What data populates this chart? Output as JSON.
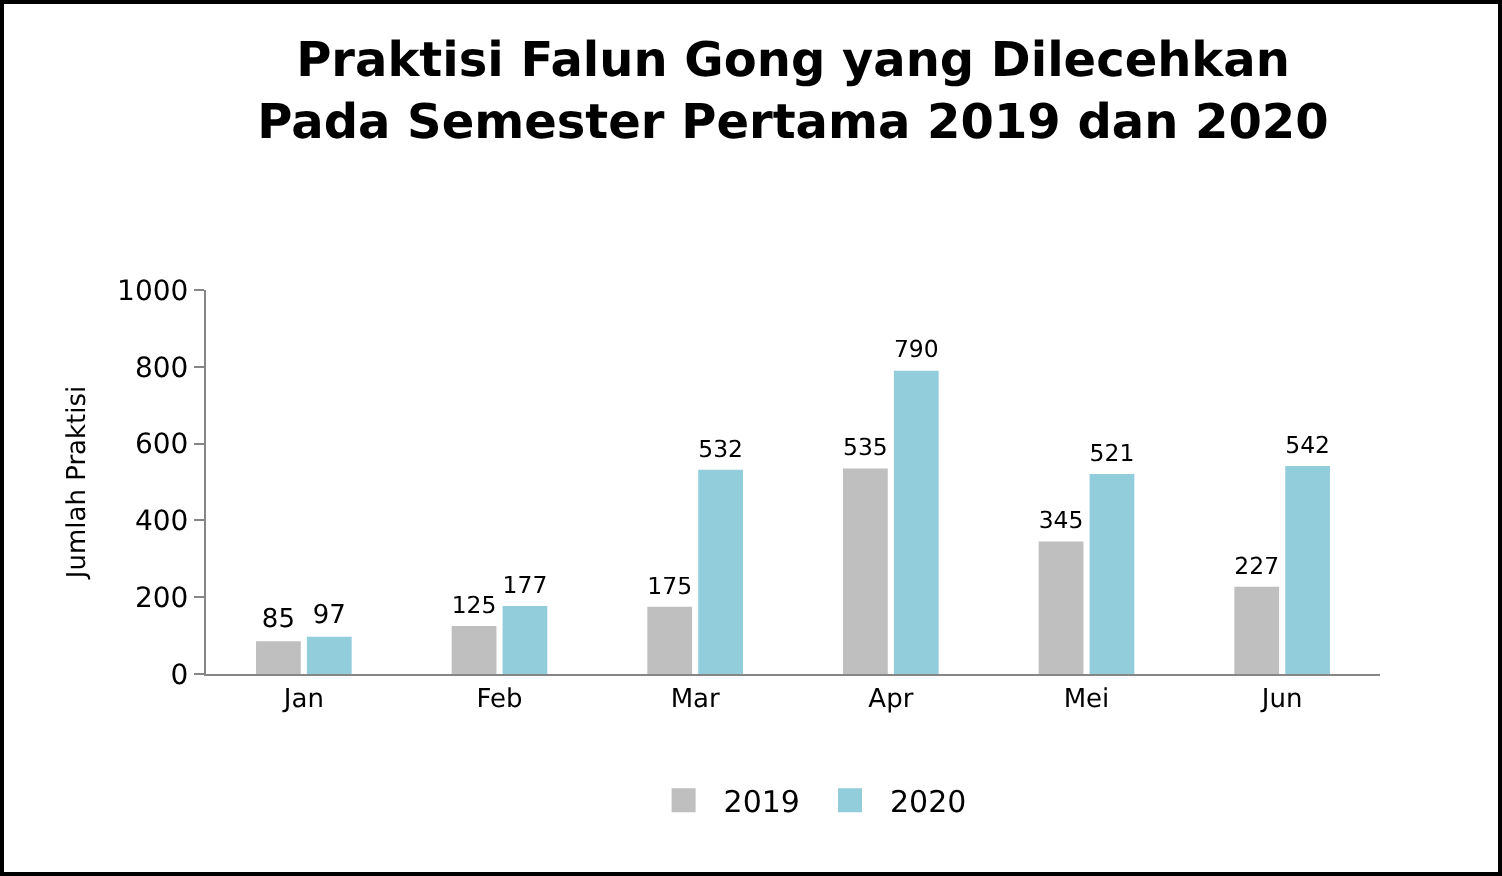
{
  "chart_data": {
    "type": "bar",
    "title": "Praktisi Falun Gong yang Dilecehkan\nPada Semester Pertama 2019 dan 2020",
    "ylabel": "Jumlah Praktisi",
    "categories": [
      "Jan",
      "Feb",
      "Mar",
      "Apr",
      "Mei",
      "Jun"
    ],
    "series": [
      {
        "name": "2019",
        "color": "#bfbfbf",
        "values": [
          85,
          125,
          175,
          535,
          345,
          227
        ]
      },
      {
        "name": "2020",
        "color": "#92cddc",
        "values": [
          97,
          177,
          532,
          790,
          521,
          542
        ]
      }
    ],
    "ylim": [
      0,
      1000
    ],
    "yticks": [
      0,
      200,
      400,
      600,
      800,
      1000
    ],
    "data_labels": true,
    "legend": "bottom",
    "grid": false
  }
}
